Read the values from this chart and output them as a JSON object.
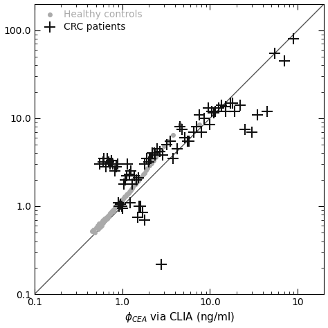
{
  "xlim": [
    0.1,
    200
  ],
  "ylim": [
    0.1,
    200
  ],
  "line_color": "#555555",
  "line_x": [
    0.1,
    200
  ],
  "line_y": [
    0.1,
    200
  ],
  "healthy_controls": {
    "color": "#aaaaaa",
    "marker": "o",
    "label": "Healthy controls",
    "label_color": "#aaaaaa",
    "markersize": 4,
    "x": [
      0.45,
      0.47,
      0.49,
      0.5,
      0.52,
      0.53,
      0.54,
      0.55,
      0.56,
      0.57,
      0.58,
      0.59,
      0.6,
      0.61,
      0.62,
      0.63,
      0.64,
      0.65,
      0.66,
      0.67,
      0.68,
      0.69,
      0.7,
      0.71,
      0.72,
      0.73,
      0.74,
      0.75,
      0.76,
      0.77,
      0.78,
      0.79,
      0.8,
      0.82,
      0.83,
      0.84,
      0.85,
      0.86,
      0.88,
      0.9,
      0.91,
      0.92,
      0.94,
      0.95,
      0.97,
      0.98,
      1.0,
      1.02,
      1.05,
      1.07,
      1.1,
      1.12,
      1.15,
      1.18,
      1.2,
      1.22,
      1.25,
      1.28,
      1.3,
      1.33,
      1.38,
      1.42,
      1.47,
      1.52,
      1.58,
      1.65,
      1.72,
      1.8,
      1.88,
      1.95,
      2.05,
      2.15,
      2.28,
      2.42,
      2.58,
      2.78,
      3.0,
      3.3,
      3.8,
      4.5,
      7.5
    ],
    "y": [
      0.52,
      0.54,
      0.5,
      0.57,
      0.6,
      0.55,
      0.63,
      0.62,
      0.58,
      0.65,
      0.6,
      0.68,
      0.65,
      0.7,
      0.68,
      0.72,
      0.7,
      0.73,
      0.75,
      0.72,
      0.75,
      0.78,
      0.76,
      0.8,
      0.82,
      0.84,
      0.83,
      0.87,
      0.88,
      0.86,
      0.9,
      0.92,
      0.88,
      0.95,
      0.97,
      0.98,
      1.0,
      1.02,
      1.05,
      1.07,
      1.05,
      1.08,
      1.1,
      1.12,
      1.15,
      1.17,
      1.18,
      1.22,
      1.25,
      1.28,
      1.3,
      1.35,
      1.38,
      1.42,
      1.45,
      1.48,
      1.52,
      1.58,
      1.6,
      1.65,
      1.75,
      1.8,
      1.88,
      1.95,
      2.05,
      2.15,
      2.28,
      2.4,
      2.55,
      2.7,
      2.9,
      3.1,
      3.3,
      3.6,
      3.9,
      4.3,
      4.8,
      5.5,
      6.5,
      8.5,
      8.5
    ]
  },
  "crc_patients": {
    "color": "#111111",
    "label": "CRC patients",
    "label_color": "#111111",
    "markersize": 8,
    "x": [
      0.55,
      0.6,
      0.65,
      0.68,
      0.7,
      0.72,
      0.75,
      0.78,
      0.82,
      0.85,
      0.88,
      0.9,
      0.92,
      0.95,
      0.98,
      1.0,
      1.05,
      1.08,
      1.12,
      1.15,
      1.2,
      1.25,
      1.3,
      1.38,
      1.45,
      1.52,
      1.6,
      1.7,
      1.8,
      1.9,
      2.0,
      2.1,
      2.2,
      2.35,
      2.5,
      2.7,
      2.9,
      3.2,
      3.5,
      3.8,
      4.2,
      4.8,
      5.2,
      5.8,
      6.5,
      7.0,
      7.5,
      8.5,
      9.5,
      10.5,
      11.5,
      12.5,
      13.5,
      15.0,
      17.0,
      19.0,
      22.0,
      25.0,
      30.0,
      35.0,
      45.0,
      55.0,
      70.0,
      90.0,
      1.5,
      1.8,
      2.8,
      0.62,
      1.22,
      1.55,
      2.05,
      2.3,
      4.5,
      5.5,
      8.0,
      10.0,
      11.0,
      15.0,
      18.0
    ],
    "y": [
      3.0,
      3.2,
      2.8,
      3.5,
      3.2,
      3.0,
      3.3,
      3.0,
      2.5,
      2.8,
      3.0,
      1.1,
      1.0,
      1.05,
      1.0,
      0.95,
      1.8,
      2.0,
      2.2,
      3.0,
      2.3,
      2.5,
      1.8,
      2.2,
      2.0,
      2.1,
      1.0,
      0.85,
      3.0,
      3.5,
      3.2,
      3.5,
      4.0,
      3.8,
      4.5,
      4.2,
      3.8,
      5.0,
      5.5,
      3.5,
      4.5,
      7.5,
      6.0,
      5.5,
      7.0,
      8.0,
      11.0,
      10.0,
      13.0,
      12.0,
      12.0,
      13.0,
      14.0,
      12.0,
      15.0,
      12.0,
      14.0,
      7.5,
      7.0,
      11.0,
      12.0,
      55.0,
      45.0,
      80.0,
      0.75,
      0.7,
      0.22,
      3.5,
      1.1,
      1.0,
      3.5,
      4.0,
      8.0,
      5.5,
      7.0,
      8.5,
      11.5,
      13.5,
      15.0
    ]
  },
  "ytick_labels": [
    "0.1",
    "1.0",
    "10.0",
    "100.0"
  ],
  "ytick_vals": [
    0.1,
    1.0,
    10.0,
    100.0
  ],
  "xtick_labels": [
    "0.1",
    "1.0",
    "10.0"
  ],
  "xtick_vals": [
    0.1,
    1.0,
    10.0
  ],
  "xlabel": "$\\phi_{CEA}$ via CLIA (ng/ml)",
  "legend_fontsize": 10,
  "tick_labelsize": 10
}
